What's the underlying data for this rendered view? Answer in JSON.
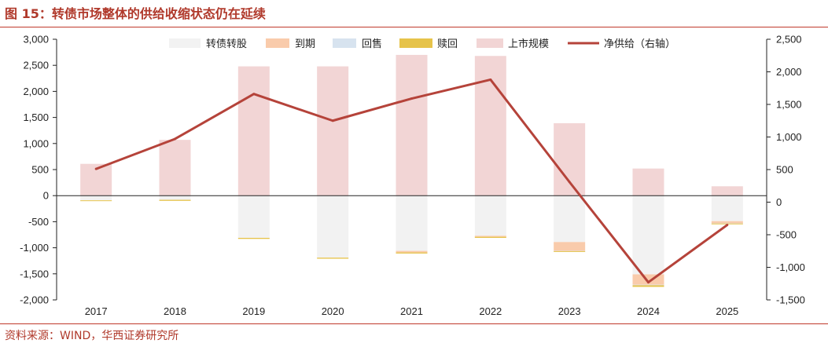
{
  "header": {
    "title": "图 15：转债市场整体的供给收缩状态仍在延续"
  },
  "footer": {
    "source": "资料来源：WIND，华西证券研究所"
  },
  "colors": {
    "conversion": "#f2f2f2",
    "maturity": "#f9cbab",
    "putback": "#d7e3ef",
    "redemption": "#e6c34a",
    "issuance": "#f2d5d5",
    "net_supply": "#b5433a",
    "axis": "#222222"
  },
  "chart_data": {
    "type": "bar",
    "categories": [
      "2017",
      "2018",
      "2019",
      "2020",
      "2021",
      "2022",
      "2023",
      "2024",
      "2025"
    ],
    "series": [
      {
        "name": "转债转股",
        "kind": "bar",
        "axis": "left",
        "color_key": "conversion",
        "values": [
          -90,
          -80,
          -810,
          -1190,
          -1060,
          -770,
          -890,
          -1510,
          -490
        ]
      },
      {
        "name": "到期",
        "kind": "bar",
        "axis": "left",
        "color_key": "maturity",
        "values": [
          0,
          0,
          0,
          0,
          -30,
          -20,
          -170,
          -200,
          -40
        ]
      },
      {
        "name": "回售",
        "kind": "bar",
        "axis": "left",
        "color_key": "putback",
        "values": [
          0,
          0,
          0,
          0,
          0,
          0,
          -5,
          -10,
          -5
        ]
      },
      {
        "name": "赎回",
        "kind": "bar",
        "axis": "left",
        "color_key": "redemption",
        "values": [
          -10,
          -20,
          -20,
          -20,
          -20,
          -20,
          -10,
          -30,
          -10
        ]
      },
      {
        "name": "上市规模",
        "kind": "bar",
        "axis": "left",
        "color_key": "issuance",
        "values": [
          610,
          1070,
          2480,
          2480,
          2700,
          2680,
          1390,
          520,
          180
        ]
      },
      {
        "name": "净供给（右轴）",
        "kind": "line",
        "axis": "right",
        "color_key": "net_supply",
        "values": [
          510,
          970,
          1660,
          1250,
          1590,
          1880,
          310,
          -1230,
          -350
        ]
      }
    ],
    "y_left": {
      "min": -2000,
      "max": 3000,
      "step": 500,
      "tick_labels": [
        "-2,000",
        "-1,500",
        "-1,000",
        "-500",
        "0",
        "500",
        "1,000",
        "1,500",
        "2,000",
        "2,500",
        "3,000"
      ]
    },
    "y_right": {
      "min": -1500,
      "max": 2500,
      "step": 500,
      "tick_labels": [
        "-1,500",
        "-1,000",
        "-500",
        "0",
        "500",
        "1,000",
        "1,500",
        "2,000",
        "2,500"
      ]
    },
    "legend": {
      "position": "top"
    },
    "grid": false,
    "title": "",
    "xlabel": "",
    "ylabel": ""
  }
}
